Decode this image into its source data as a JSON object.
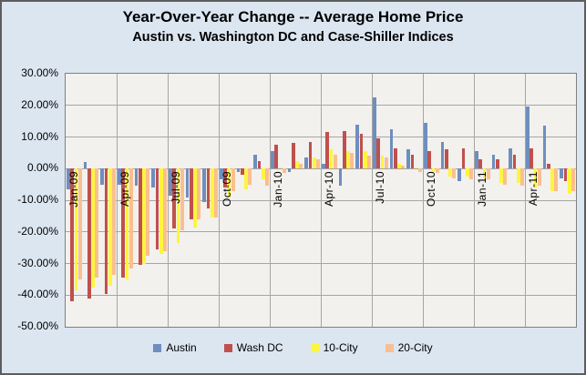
{
  "title": "Year-Over-Year Change -- Average Home Price",
  "subtitle": "Austin vs. Washington DC and Case-Shiller Indices",
  "colors": {
    "austin": "#6e8ebe",
    "wash_dc": "#c0504d",
    "ten_city": "#fdf53f",
    "twenty_city": "#fabf8f",
    "chart_bg": "#dce6f1",
    "plot_bg": "#f2f1ee",
    "gridline": "#a6a6a6",
    "plot_border": "#7f7f7f",
    "text": "#000000"
  },
  "y_axis": {
    "labels": [
      "30.00%",
      "20.00%",
      "10.00%",
      "0.00%",
      "-10.00%",
      "-20.00%",
      "-30.00%",
      "-40.00%",
      "-50.00%"
    ],
    "max": 30,
    "min": -50,
    "step": 10
  },
  "x_axis": {
    "tick_labels": [
      "Jan-09",
      "Apr-09",
      "Jul-09",
      "Oct-09",
      "Jan-10",
      "Apr-10",
      "Jul-10",
      "Oct-10",
      "Jan-11",
      "Apr-11"
    ]
  },
  "legend": {
    "items": [
      {
        "label": "Austin",
        "color": "austin"
      },
      {
        "label": "Wash DC",
        "color": "wash_dc"
      },
      {
        "label": "10-City",
        "color": "ten_city"
      },
      {
        "label": "20-City",
        "color": "twenty_city"
      }
    ]
  },
  "chart_data": {
    "type": "bar",
    "title": "Year-Over-Year Change -- Average Home Price",
    "subtitle": "Austin vs. Washington DC and Case-Shiller Indices",
    "ylim": [
      -50,
      30
    ],
    "y_tick_step": 10,
    "grid": true,
    "legend_position": "bottom",
    "x_tick_interval_months": 3,
    "categories": [
      "Jan-09",
      "Feb-09",
      "Mar-09",
      "Apr-09",
      "May-09",
      "Jun-09",
      "Jul-09",
      "Aug-09",
      "Sep-09",
      "Oct-09",
      "Nov-09",
      "Dec-09",
      "Jan-10",
      "Feb-10",
      "Mar-10",
      "Apr-10",
      "May-10",
      "Jun-10",
      "Jul-10",
      "Aug-10",
      "Sep-10",
      "Oct-10",
      "Nov-10",
      "Dec-10",
      "Jan-11",
      "Feb-11",
      "Mar-11",
      "Apr-11",
      "May-11",
      "Jun-11"
    ],
    "series": [
      {
        "name": "Austin",
        "color": "austin",
        "values": [
          -6.5,
          2,
          -5,
          -5,
          -5.5,
          -6,
          -8.5,
          -9,
          -10.5,
          -3.5,
          -1,
          4.5,
          5.5,
          -1,
          3.5,
          1.5,
          -5.5,
          14,
          22.5,
          12.5,
          6,
          14.5,
          8.5,
          -4,
          5.5,
          4.5,
          6.5,
          19.5,
          13.5,
          -3
        ]
      },
      {
        "name": "Wash DC",
        "color": "wash_dc",
        "values": [
          -42,
          -41,
          -39.5,
          -34.5,
          -30.5,
          -25.5,
          -19,
          -16,
          -12.5,
          -6,
          -2,
          2.5,
          7.5,
          8,
          8.5,
          11.5,
          12,
          11,
          9.5,
          6.5,
          4.5,
          5.5,
          6,
          6.5,
          3,
          3,
          4.5,
          6.5,
          1.5,
          -4
        ]
      },
      {
        "name": "10-City",
        "color": "ten_city",
        "values": [
          -38.5,
          -37.5,
          -37,
          -35,
          -30,
          -27,
          -23.5,
          -18.5,
          -15.5,
          -9,
          -6.5,
          -3.5,
          0.5,
          2.5,
          3.5,
          6,
          5.5,
          5.5,
          4,
          1.5,
          0.5,
          -1,
          -2.5,
          -2.5,
          -3,
          -4.5,
          -4.5,
          -6,
          -7,
          -8
        ]
      },
      {
        "name": "20-City",
        "color": "twenty_city",
        "values": [
          -35,
          -34.5,
          -33.5,
          -31.5,
          -27.5,
          -26,
          -19.5,
          -16,
          -15.5,
          -7,
          -5,
          -5.5,
          -1.5,
          1.5,
          3,
          4.5,
          5,
          4,
          3.5,
          1,
          -1,
          -1.5,
          -3,
          -3.5,
          -3.5,
          -5,
          -5.5,
          -5.5,
          -7,
          -7
        ]
      }
    ]
  }
}
